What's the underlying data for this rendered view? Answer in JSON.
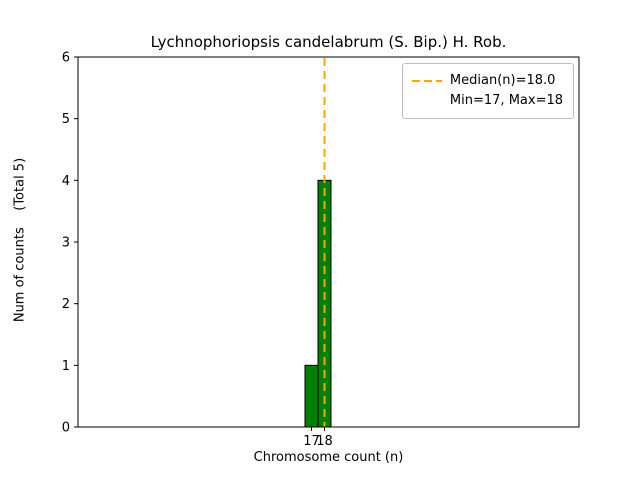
{
  "chart_data": {
    "type": "bar",
    "title": "Lychnophoriopsis candelabrum (S. Bip.) H. Rob.",
    "xlabel": "Chromosome count (n)",
    "ylabel": "Num of counts    (Total 5)",
    "categories": [
      17,
      18
    ],
    "values": [
      1,
      4
    ],
    "total_counts": 5,
    "median": 18.0,
    "min": 17,
    "max": 18,
    "ylim": [
      0,
      6
    ],
    "yticks": [
      0,
      1,
      2,
      3,
      4,
      5,
      6
    ],
    "xticks": [
      17,
      18
    ],
    "bar_color": "#008000",
    "bar_edge_color": "#000000",
    "median_line_color": "#FFA500",
    "legend_entries": [
      "Median(n)=18.0",
      "Min=17, Max=18"
    ],
    "legend_position": "upper right",
    "grid": false
  }
}
